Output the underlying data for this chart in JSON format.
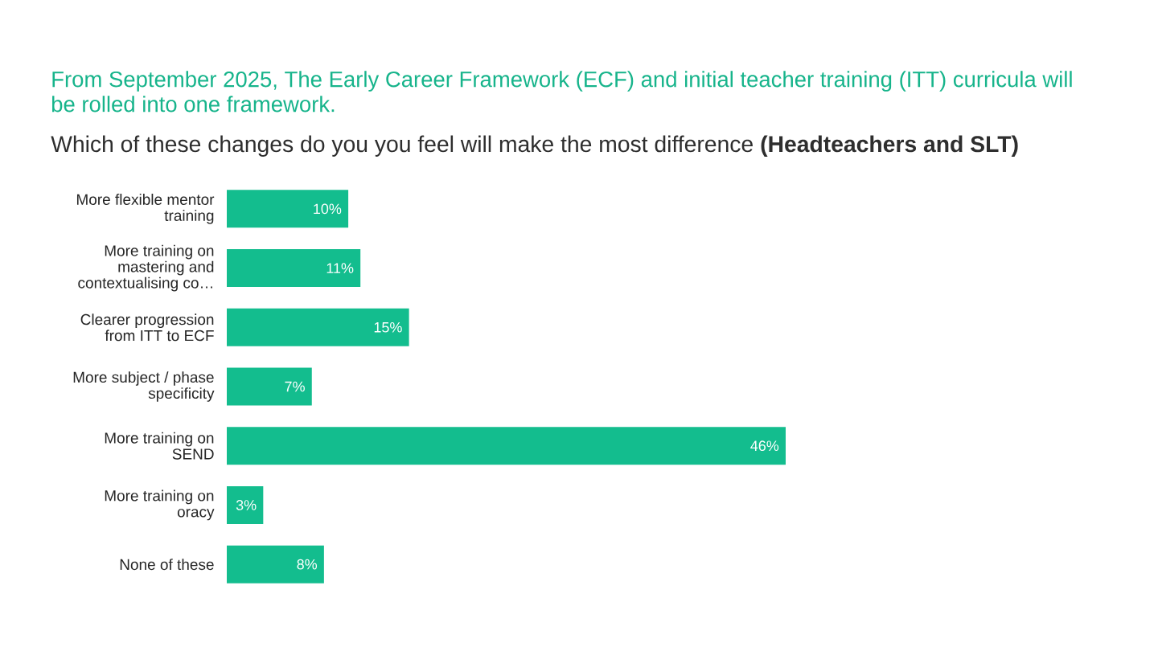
{
  "chart_data": {
    "type": "bar",
    "orientation": "horizontal",
    "title": "From September 2025, The Early Career Framework (ECF) and initial teacher training (ITT) curricula will be rolled into one framework.",
    "subtitle": "Which of these changes do you you feel will make the most difference **(Headteachers and SLT)**",
    "categories": [
      "More flexible mentor training",
      "More training on mastering and contextualising co…",
      "Clearer progression from ITT to ECF",
      "More subject / phase specificity",
      "More training on SEND",
      "More training on oracy",
      "None of these"
    ],
    "values": [
      10,
      11,
      15,
      7,
      46,
      3,
      8
    ],
    "value_labels": [
      "10%",
      "11%",
      "15%",
      "7%",
      "46%",
      "3%",
      "8%"
    ],
    "color": "#13bd8e",
    "tick_labels": "y"
  }
}
